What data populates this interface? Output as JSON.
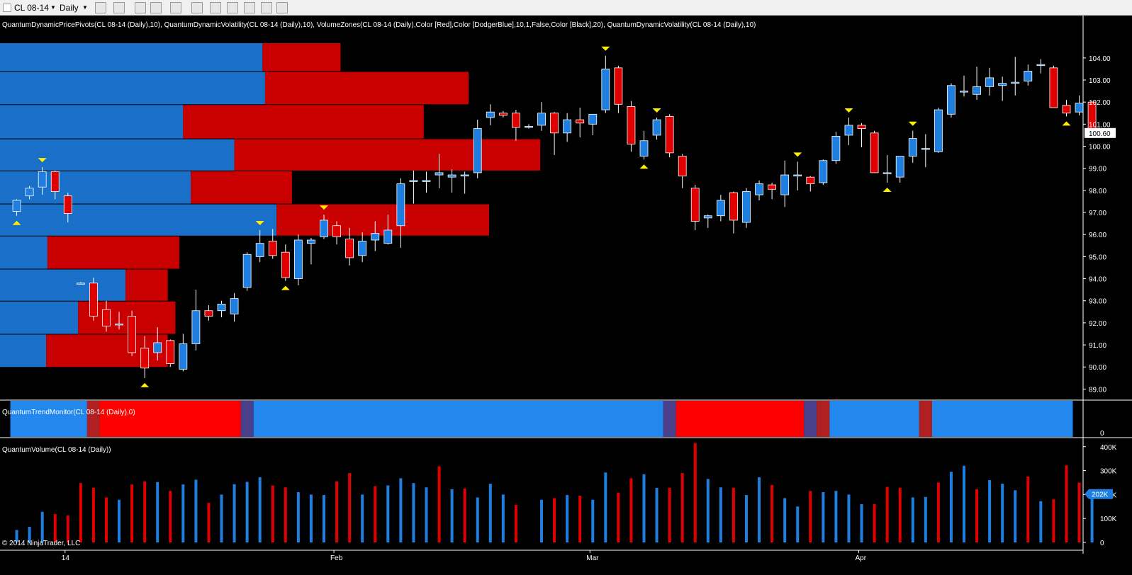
{
  "toolbar": {
    "instrument": "CL 08-14",
    "period": "Daily"
  },
  "indicators": {
    "price_panel": "QuantumDynamicPricePivots(CL 08-14 (Daily),10), QuantumDynamicVolatility(CL 08-14 (Daily),10), VolumeZones(CL 08-14 (Daily),Color [Red],Color [DodgerBlue],10,1,False,Color [Black],20), QuantumDynamicVolatility(CL 08-14 (Daily),10)",
    "trend_panel": "QuantumTrendMonitor(CL 08-14 (Daily),0)",
    "volume_panel": "QuantumVolume(CL 08-14 (Daily))"
  },
  "copyright": "© 2014 NinjaTrader, LLC",
  "colors": {
    "up": "#1e7fe0",
    "down": "#e00000",
    "zone_up": "#1a6fc8",
    "zone_down": "#c80000",
    "trend_up": "#2288ee",
    "trend_down": "#ff0000",
    "trend_neutral": "#4a3f8a",
    "trend_weak": "#b02020",
    "pivot": "#ffee00",
    "background": "#000000"
  },
  "chart_data": {
    "type": "candlestick",
    "price_axis": {
      "ticks": [
        "104.00",
        "103.00",
        "102.00",
        "101.00",
        "100.00",
        "99.00",
        "98.00",
        "97.00",
        "96.00",
        "95.00",
        "94.00",
        "93.00",
        "92.00",
        "91.00",
        "90.00",
        "89.00"
      ],
      "range": [
        88.5,
        104.7
      ],
      "last_price_label": "100.60"
    },
    "volume_axis": {
      "ticks": [
        "400K",
        "300K",
        "200K",
        "100K",
        "0"
      ],
      "range": [
        0,
        420000
      ],
      "last_volume_label": "202K"
    },
    "trend_axis": {
      "ticks": [
        "0"
      ]
    },
    "x_ticks": [
      {
        "label": "14",
        "bar": 5
      },
      {
        "label": "Feb",
        "bar": 26
      },
      {
        "label": "Mar",
        "bar": 46
      },
      {
        "label": "Apr",
        "bar": 67
      }
    ],
    "candles": [
      [
        1,
        97.05,
        97.6,
        96.85,
        97.55
      ],
      [
        2,
        97.75,
        98.2,
        97.6,
        98.1
      ],
      [
        3,
        98.15,
        99.05,
        97.8,
        98.85
      ],
      [
        4,
        98.85,
        98.9,
        97.6,
        97.95
      ],
      [
        5,
        97.75,
        97.9,
        96.55,
        96.95
      ],
      [
        6,
        93.8,
        93.85,
        93.75,
        93.8
      ],
      [
        7,
        93.8,
        94.05,
        92.1,
        92.3
      ],
      [
        8,
        92.6,
        93.0,
        91.6,
        91.85
      ],
      [
        9,
        91.95,
        92.5,
        91.7,
        91.95
      ],
      [
        10,
        92.3,
        92.55,
        90.5,
        90.65
      ],
      [
        11,
        90.85,
        91.4,
        89.5,
        89.95
      ],
      [
        12,
        90.65,
        91.8,
        90.3,
        91.1
      ],
      [
        13,
        91.2,
        91.25,
        90.0,
        90.15
      ],
      [
        14,
        89.9,
        91.5,
        89.8,
        91.05
      ],
      [
        15,
        91.05,
        93.5,
        90.75,
        92.55
      ],
      [
        16,
        92.55,
        92.8,
        92.1,
        92.3
      ],
      [
        17,
        92.55,
        93.0,
        92.25,
        92.85
      ],
      [
        18,
        92.4,
        93.35,
        92.05,
        93.1
      ],
      [
        19,
        93.6,
        95.2,
        93.45,
        95.1
      ],
      [
        20,
        95.0,
        96.2,
        94.75,
        95.6
      ],
      [
        21,
        95.7,
        96.25,
        94.9,
        95.05
      ],
      [
        22,
        95.2,
        95.55,
        93.9,
        94.05
      ],
      [
        23,
        94.0,
        96.0,
        93.7,
        95.75
      ],
      [
        24,
        95.6,
        95.85,
        94.65,
        95.75
      ],
      [
        25,
        95.9,
        96.9,
        95.8,
        96.65
      ],
      [
        26,
        96.4,
        96.6,
        95.55,
        95.9
      ],
      [
        27,
        95.8,
        96.3,
        94.6,
        94.95
      ],
      [
        28,
        95.05,
        96.1,
        94.75,
        95.7
      ],
      [
        29,
        95.75,
        96.6,
        95.25,
        96.05
      ],
      [
        30,
        95.6,
        96.9,
        95.55,
        96.2
      ],
      [
        31,
        96.4,
        98.55,
        95.4,
        98.3
      ],
      [
        32,
        98.4,
        98.9,
        97.4,
        98.45
      ],
      [
        33,
        98.4,
        98.85,
        97.9,
        98.45
      ],
      [
        34,
        98.7,
        99.65,
        98.1,
        98.8
      ],
      [
        35,
        98.6,
        98.95,
        97.9,
        98.7
      ],
      [
        36,
        98.65,
        98.85,
        97.85,
        98.7
      ],
      [
        37,
        98.8,
        101.2,
        98.55,
        100.8
      ],
      [
        38,
        101.3,
        101.9,
        100.95,
        101.55
      ],
      [
        39,
        101.5,
        101.6,
        101.3,
        101.4
      ],
      [
        40,
        101.5,
        101.65,
        100.25,
        100.85
      ],
      [
        41,
        100.85,
        101.0,
        100.8,
        100.9
      ],
      [
        42,
        100.95,
        102.0,
        100.7,
        101.5
      ],
      [
        43,
        101.5,
        101.55,
        99.6,
        100.6
      ],
      [
        44,
        100.6,
        101.5,
        100.2,
        101.2
      ],
      [
        45,
        101.2,
        101.75,
        100.4,
        101.05
      ],
      [
        46,
        101.0,
        101.4,
        100.5,
        101.45
      ],
      [
        47,
        101.65,
        104.1,
        101.5,
        103.5
      ],
      [
        48,
        103.55,
        103.65,
        101.5,
        101.9
      ],
      [
        49,
        101.8,
        102.05,
        99.75,
        100.1
      ],
      [
        50,
        99.55,
        100.7,
        99.4,
        100.25
      ],
      [
        51,
        100.5,
        101.3,
        100.3,
        101.2
      ],
      [
        52,
        101.35,
        101.45,
        99.5,
        99.7
      ],
      [
        53,
        99.55,
        99.65,
        98.1,
        98.65
      ],
      [
        54,
        98.1,
        98.25,
        96.2,
        96.6
      ],
      [
        55,
        96.75,
        96.9,
        96.3,
        96.85
      ],
      [
        56,
        96.85,
        97.8,
        96.6,
        97.55
      ],
      [
        57,
        97.9,
        97.95,
        96.05,
        96.65
      ],
      [
        58,
        96.55,
        98.1,
        96.3,
        97.95
      ],
      [
        59,
        97.8,
        98.45,
        97.55,
        98.3
      ],
      [
        60,
        98.25,
        98.35,
        97.6,
        98.05
      ],
      [
        61,
        97.8,
        99.35,
        97.25,
        98.7
      ],
      [
        62,
        98.65,
        99.3,
        98.0,
        98.7
      ],
      [
        63,
        98.6,
        98.65,
        97.95,
        98.3
      ],
      [
        64,
        98.35,
        99.4,
        98.25,
        99.35
      ],
      [
        65,
        99.35,
        100.65,
        99.2,
        100.45
      ],
      [
        66,
        100.5,
        101.3,
        100.05,
        100.95
      ],
      [
        67,
        100.95,
        101.05,
        99.95,
        100.8
      ],
      [
        68,
        100.6,
        100.7,
        98.85,
        98.8
      ],
      [
        69,
        98.8,
        99.6,
        98.35,
        98.8
      ],
      [
        70,
        98.6,
        99.55,
        98.35,
        99.55
      ],
      [
        71,
        99.55,
        100.7,
        99.25,
        100.35
      ],
      [
        72,
        99.9,
        100.55,
        99.05,
        99.9
      ],
      [
        73,
        99.75,
        101.75,
        99.7,
        101.65
      ],
      [
        74,
        101.45,
        102.85,
        101.3,
        102.75
      ],
      [
        75,
        102.5,
        103.2,
        102.25,
        102.5
      ],
      [
        76,
        102.35,
        103.6,
        102.1,
        102.7
      ],
      [
        77,
        102.7,
        103.55,
        102.3,
        103.1
      ],
      [
        78,
        102.75,
        103.15,
        102.05,
        102.85
      ],
      [
        79,
        102.85,
        104.05,
        102.3,
        102.9
      ],
      [
        80,
        102.95,
        103.7,
        102.75,
        103.4
      ],
      [
        81,
        103.7,
        103.95,
        103.3,
        103.7
      ],
      [
        82,
        103.55,
        103.65,
        101.75,
        101.75
      ],
      [
        83,
        101.85,
        102.1,
        101.35,
        101.5
      ],
      [
        84,
        101.55,
        102.3,
        101.4,
        101.95
      ],
      [
        85,
        102.0,
        102.05,
        100.65,
        100.6
      ]
    ],
    "volume": [
      [
        1,
        52000,
        "up"
      ],
      [
        2,
        65000,
        "up"
      ],
      [
        3,
        128000,
        "up"
      ],
      [
        4,
        118000,
        "down"
      ],
      [
        5,
        112000,
        "down"
      ],
      [
        6,
        248000,
        "down"
      ],
      [
        7,
        228000,
        "down"
      ],
      [
        8,
        188000,
        "down"
      ],
      [
        9,
        178000,
        "up"
      ],
      [
        10,
        242000,
        "down"
      ],
      [
        11,
        255000,
        "down"
      ],
      [
        12,
        252000,
        "up"
      ],
      [
        13,
        215000,
        "down"
      ],
      [
        14,
        242000,
        "up"
      ],
      [
        15,
        262000,
        "up"
      ],
      [
        16,
        165000,
        "down"
      ],
      [
        17,
        200000,
        "up"
      ],
      [
        18,
        243000,
        "up"
      ],
      [
        19,
        253000,
        "up"
      ],
      [
        20,
        272000,
        "up"
      ],
      [
        21,
        238000,
        "down"
      ],
      [
        22,
        230000,
        "down"
      ],
      [
        23,
        210000,
        "up"
      ],
      [
        24,
        200000,
        "up"
      ],
      [
        25,
        198000,
        "up"
      ],
      [
        26,
        255000,
        "down"
      ],
      [
        27,
        290000,
        "down"
      ],
      [
        28,
        200000,
        "up"
      ],
      [
        29,
        235000,
        "down"
      ],
      [
        30,
        238000,
        "up"
      ],
      [
        31,
        268000,
        "up"
      ],
      [
        32,
        248000,
        "up"
      ],
      [
        33,
        230000,
        "up"
      ],
      [
        34,
        318000,
        "down"
      ],
      [
        35,
        222000,
        "up"
      ],
      [
        36,
        225000,
        "down"
      ],
      [
        37,
        188000,
        "up"
      ],
      [
        38,
        245000,
        "up"
      ],
      [
        39,
        200000,
        "up"
      ],
      [
        40,
        157000,
        "down"
      ],
      [
        41,
        0,
        "up"
      ],
      [
        42,
        178000,
        "up"
      ],
      [
        43,
        185000,
        "down"
      ],
      [
        44,
        198000,
        "up"
      ],
      [
        45,
        195000,
        "down"
      ],
      [
        46,
        178000,
        "up"
      ],
      [
        47,
        292000,
        "up"
      ],
      [
        48,
        208000,
        "down"
      ],
      [
        49,
        268000,
        "down"
      ],
      [
        50,
        285000,
        "up"
      ],
      [
        51,
        228000,
        "up"
      ],
      [
        52,
        228000,
        "down"
      ],
      [
        53,
        290000,
        "down"
      ],
      [
        54,
        415000,
        "down"
      ],
      [
        55,
        265000,
        "up"
      ],
      [
        56,
        230000,
        "up"
      ],
      [
        57,
        228000,
        "down"
      ],
      [
        58,
        198000,
        "up"
      ],
      [
        59,
        272000,
        "up"
      ],
      [
        60,
        240000,
        "down"
      ],
      [
        61,
        185000,
        "up"
      ],
      [
        62,
        150000,
        "up"
      ],
      [
        63,
        215000,
        "down"
      ],
      [
        64,
        210000,
        "up"
      ],
      [
        65,
        215000,
        "up"
      ],
      [
        66,
        200000,
        "up"
      ],
      [
        67,
        160000,
        "up"
      ],
      [
        68,
        160000,
        "down"
      ],
      [
        69,
        232000,
        "down"
      ],
      [
        70,
        228000,
        "down"
      ],
      [
        71,
        188000,
        "up"
      ],
      [
        72,
        190000,
        "up"
      ],
      [
        73,
        250000,
        "down"
      ],
      [
        74,
        295000,
        "up"
      ],
      [
        75,
        320000,
        "up"
      ],
      [
        76,
        222000,
        "down"
      ],
      [
        77,
        260000,
        "up"
      ],
      [
        78,
        245000,
        "up"
      ],
      [
        79,
        218000,
        "up"
      ],
      [
        80,
        275000,
        "down"
      ],
      [
        81,
        172000,
        "up"
      ],
      [
        82,
        180000,
        "down"
      ],
      [
        83,
        322000,
        "down"
      ],
      [
        84,
        250000,
        "down"
      ],
      [
        85,
        202000,
        "up"
      ]
    ],
    "volume_zones": [
      {
        "low": 103.4,
        "high": 104.7,
        "buy_end_bar": 20.2,
        "sell_end_bar": 26.3
      },
      {
        "low": 101.9,
        "high": 103.4,
        "buy_end_bar": 20.4,
        "sell_end_bar": 36.3
      },
      {
        "low": 100.35,
        "high": 101.9,
        "buy_end_bar": 14.0,
        "sell_end_bar": 32.8
      },
      {
        "low": 98.9,
        "high": 100.35,
        "buy_end_bar": 18.0,
        "sell_end_bar": 41.9
      },
      {
        "low": 97.4,
        "high": 98.9,
        "buy_end_bar": 14.6,
        "sell_end_bar": 22.5
      },
      {
        "low": 95.95,
        "high": 97.4,
        "buy_end_bar": 21.3,
        "sell_end_bar": 37.9
      },
      {
        "low": 94.45,
        "high": 95.95,
        "buy_end_bar": 3.4,
        "sell_end_bar": 13.7
      },
      {
        "low": 93.0,
        "high": 94.45,
        "buy_end_bar": 9.5,
        "sell_end_bar": 12.8
      },
      {
        "low": 91.5,
        "high": 93.0,
        "buy_end_bar": 5.8,
        "sell_end_bar": 13.4
      },
      {
        "low": 90.0,
        "high": 91.5,
        "buy_end_bar": 3.3,
        "sell_end_bar": 12.8
      }
    ],
    "pivot_markers": [
      {
        "bar": 1,
        "type": "low",
        "price": 96.85
      },
      {
        "bar": 3,
        "type": "high",
        "price": 99.05
      },
      {
        "bar": 11,
        "type": "low",
        "price": 89.5
      },
      {
        "bar": 20,
        "type": "high",
        "price": 96.2
      },
      {
        "bar": 22,
        "type": "low",
        "price": 93.9
      },
      {
        "bar": 25,
        "type": "high",
        "price": 96.9
      },
      {
        "bar": 47,
        "type": "high",
        "price": 104.1
      },
      {
        "bar": 50,
        "type": "low",
        "price": 99.4
      },
      {
        "bar": 51,
        "type": "high",
        "price": 101.3
      },
      {
        "bar": 62,
        "type": "high",
        "price": 99.3
      },
      {
        "bar": 66,
        "type": "high",
        "price": 101.3
      },
      {
        "bar": 69,
        "type": "low",
        "price": 98.35
      },
      {
        "bar": 71,
        "type": "high",
        "price": 100.7
      },
      {
        "bar": 83,
        "type": "low",
        "price": 101.35
      }
    ],
    "trend_segments": [
      {
        "from": 0.5,
        "to": 6.5,
        "state": "up"
      },
      {
        "from": 6.5,
        "to": 7.5,
        "state": "weak"
      },
      {
        "from": 7.5,
        "to": 18.5,
        "state": "down"
      },
      {
        "from": 18.5,
        "to": 19.5,
        "state": "neutral"
      },
      {
        "from": 19.5,
        "to": 51.5,
        "state": "up"
      },
      {
        "from": 51.5,
        "to": 52.5,
        "state": "neutral"
      },
      {
        "from": 52.5,
        "to": 62.5,
        "state": "down"
      },
      {
        "from": 62.5,
        "to": 63.5,
        "state": "neutral"
      },
      {
        "from": 63.5,
        "to": 64.5,
        "state": "weak"
      },
      {
        "from": 64.5,
        "to": 71.5,
        "state": "up"
      },
      {
        "from": 71.5,
        "to": 72.5,
        "state": "weak"
      },
      {
        "from": 72.5,
        "to": 83.5,
        "state": "up"
      }
    ]
  }
}
